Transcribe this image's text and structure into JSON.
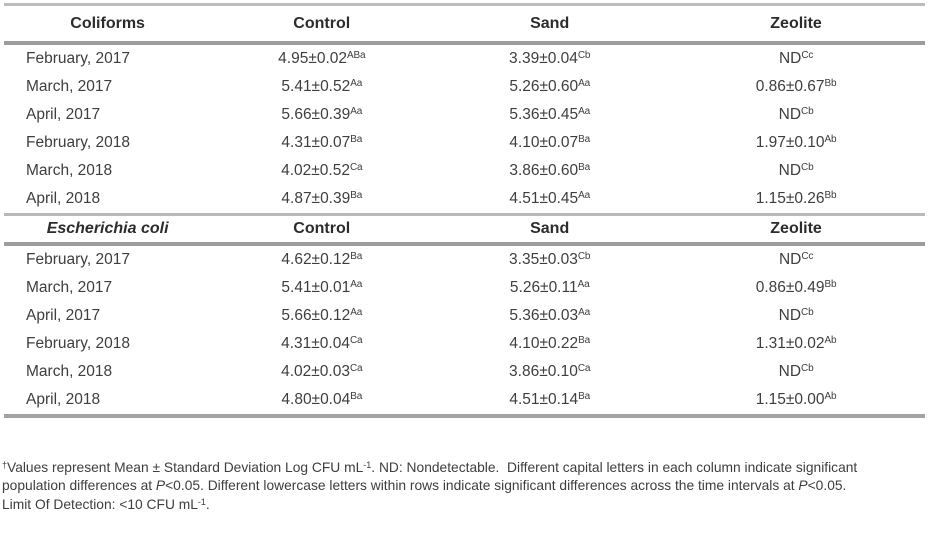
{
  "table": {
    "sections": [
      {
        "header": {
          "label": "Coliforms",
          "italic": false,
          "cols": [
            "Control",
            "Sand",
            "Zeolite"
          ]
        },
        "rows": [
          {
            "label": "February, 2017",
            "cells": [
              {
                "v": "4.95±0.02",
                "sup": "ABa"
              },
              {
                "v": "3.39±0.04",
                "sup": "Cb"
              },
              {
                "v": "ND",
                "sup": "Cc"
              }
            ]
          },
          {
            "label": "March, 2017",
            "cells": [
              {
                "v": "5.41±0.52",
                "sup": "Aa"
              },
              {
                "v": "5.26±0.60",
                "sup": "Aa"
              },
              {
                "v": "0.86±0.67",
                "sup": "Bb"
              }
            ]
          },
          {
            "label": "April, 2017",
            "cells": [
              {
                "v": "5.66±0.39",
                "sup": "Aa"
              },
              {
                "v": "5.36±0.45",
                "sup": "Aa"
              },
              {
                "v": "ND",
                "sup": "Cb"
              }
            ]
          },
          {
            "label": "February, 2018",
            "cells": [
              {
                "v": "4.31±0.07",
                "sup": "Ba"
              },
              {
                "v": "4.10±0.07",
                "sup": "Ba"
              },
              {
                "v": "1.97±0.10",
                "sup": "Ab"
              }
            ]
          },
          {
            "label": "March, 2018",
            "cells": [
              {
                "v": "4.02±0.52",
                "sup": "Ca"
              },
              {
                "v": "3.86±0.60",
                "sup": "Ba"
              },
              {
                "v": "ND",
                "sup": "Cb"
              }
            ]
          },
          {
            "label": "April, 2018",
            "cells": [
              {
                "v": "4.87±0.39",
                "sup": "Ba"
              },
              {
                "v": "4.51±0.45",
                "sup": "Aa"
              },
              {
                "v": "1.15±0.26",
                "sup": "Bb"
              }
            ]
          }
        ]
      },
      {
        "header": {
          "label": "Escherichia coli",
          "italic": true,
          "cols": [
            "Control",
            "Sand",
            "Zeolite"
          ]
        },
        "rows": [
          {
            "label": "February, 2017",
            "cells": [
              {
                "v": "4.62±0.12",
                "sup": "Ba"
              },
              {
                "v": "3.35±0.03",
                "sup": "Cb"
              },
              {
                "v": "ND",
                "sup": "Cc"
              }
            ]
          },
          {
            "label": "March, 2017",
            "cells": [
              {
                "v": "5.41±0.01",
                "sup": "Aa"
              },
              {
                "v": "5.26±0.11",
                "sup": "Aa"
              },
              {
                "v": "0.86±0.49",
                "sup": "Bb"
              }
            ]
          },
          {
            "label": "April, 2017",
            "cells": [
              {
                "v": "5.66±0.12",
                "sup": "Aa"
              },
              {
                "v": "5.36±0.03",
                "sup": "Aa"
              },
              {
                "v": "ND",
                "sup": "Cb"
              }
            ]
          },
          {
            "label": "February, 2018",
            "cells": [
              {
                "v": "4.31±0.04",
                "sup": "Ca"
              },
              {
                "v": "4.10±0.22",
                "sup": "Ba"
              },
              {
                "v": "1.31±0.02",
                "sup": "Ab"
              }
            ]
          },
          {
            "label": "March, 2018",
            "cells": [
              {
                "v": "4.02±0.03",
                "sup": "Ca"
              },
              {
                "v": "3.86±0.10",
                "sup": "Ca"
              },
              {
                "v": "ND",
                "sup": "Cb"
              }
            ]
          },
          {
            "label": "April, 2018",
            "cells": [
              {
                "v": "4.80±0.04",
                "sup": "Ba"
              },
              {
                "v": "4.51±0.14",
                "sup": "Ba"
              },
              {
                "v": "1.15±0.00",
                "sup": "Ab"
              }
            ]
          }
        ]
      }
    ]
  },
  "footnote": {
    "lines": [
      [
        {
          "t": "†",
          "style": "sup"
        },
        {
          "t": "Values represent Mean ± Standard Deviation Log CFU mL"
        },
        {
          "t": "-1",
          "style": "sup"
        },
        {
          "t": ". ND: Nondetectable.  Different capital letters in each column indicate significant"
        }
      ],
      [
        {
          "t": "population differences at "
        },
        {
          "t": "P",
          "style": "italic"
        },
        {
          "t": "<0.05. Different lowercase letters within rows indicate significant differences across the time intervals at "
        },
        {
          "t": "P",
          "style": "italic"
        },
        {
          "t": "<0.05."
        }
      ],
      [
        {
          "t": "Limit Of Detection: <10 CFU mL"
        },
        {
          "t": "-1",
          "style": "sup"
        },
        {
          "t": "."
        }
      ]
    ]
  }
}
